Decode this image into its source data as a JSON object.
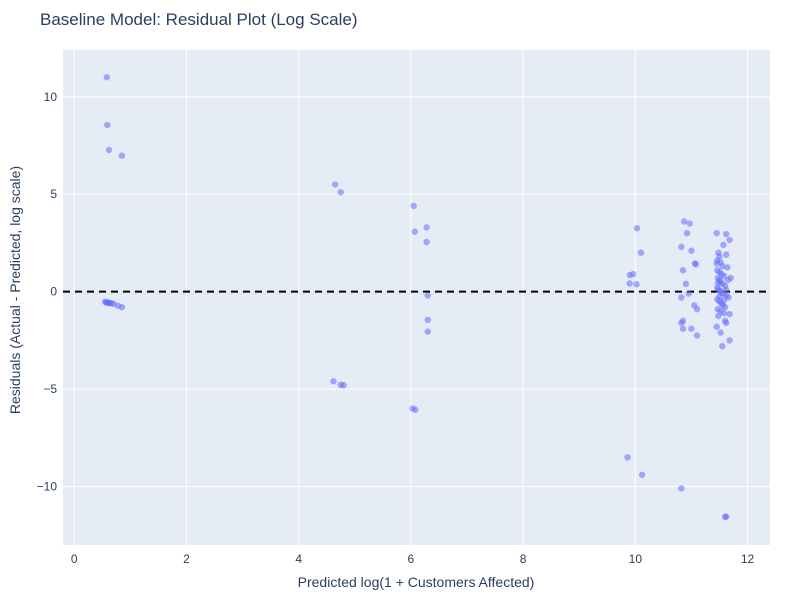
{
  "chart_data": {
    "type": "scatter",
    "title": "Baseline Model: Residual Plot (Log Scale)",
    "xlabel": "Predicted log(1 + Customers Affected)",
    "ylabel": "Residuals (Actual - Predicted, log scale)",
    "xlim": [
      -0.2,
      12.4
    ],
    "ylim": [
      -13,
      12.4
    ],
    "x_ticks": [
      0,
      2,
      4,
      6,
      8,
      10,
      12
    ],
    "y_ticks": [
      -10,
      -5,
      0,
      5,
      10
    ],
    "grid": true,
    "legend": "none",
    "reference_line": {
      "y": 0,
      "style": "dashed",
      "color": "#000000"
    },
    "colors": {
      "point": "#636efa",
      "plot_bg": "#e5ecf6",
      "grid": "#ffffff",
      "text": "#2a3f5f"
    },
    "series": [
      {
        "points": [
          [
            0.58,
            11.0
          ],
          [
            0.59,
            8.55
          ],
          [
            0.62,
            7.27
          ],
          [
            0.85,
            6.98
          ],
          [
            0.55,
            -0.52
          ],
          [
            0.57,
            -0.55
          ],
          [
            0.59,
            -0.56
          ],
          [
            0.61,
            -0.57
          ],
          [
            0.63,
            -0.58
          ],
          [
            0.66,
            -0.6
          ],
          [
            0.7,
            -0.62
          ],
          [
            0.78,
            -0.72
          ],
          [
            0.85,
            -0.8
          ],
          [
            4.65,
            5.5
          ],
          [
            4.75,
            5.1
          ],
          [
            4.62,
            -4.6
          ],
          [
            4.75,
            -4.78
          ],
          [
            4.8,
            -4.8
          ],
          [
            6.05,
            4.4
          ],
          [
            6.07,
            3.08
          ],
          [
            6.28,
            3.3
          ],
          [
            6.28,
            2.55
          ],
          [
            6.3,
            -0.2
          ],
          [
            6.3,
            -1.45
          ],
          [
            6.3,
            -2.05
          ],
          [
            6.03,
            -6.0
          ],
          [
            6.08,
            -6.06
          ],
          [
            9.9,
            0.85
          ],
          [
            9.96,
            0.9
          ],
          [
            9.9,
            0.42
          ],
          [
            10.02,
            0.38
          ],
          [
            10.03,
            3.25
          ],
          [
            10.1,
            2.0
          ],
          [
            9.86,
            -8.5
          ],
          [
            10.12,
            -9.4
          ],
          [
            10.82,
            2.3
          ],
          [
            10.87,
            3.6
          ],
          [
            10.97,
            3.5
          ],
          [
            10.92,
            3.0
          ],
          [
            10.85,
            1.1
          ],
          [
            10.9,
            0.4
          ],
          [
            11.0,
            2.1
          ],
          [
            11.08,
            1.4
          ],
          [
            11.06,
            1.45
          ],
          [
            10.95,
            -0.1
          ],
          [
            10.82,
            -0.3
          ],
          [
            11.05,
            -0.7
          ],
          [
            11.1,
            -0.9
          ],
          [
            10.85,
            -1.5
          ],
          [
            10.82,
            -1.6
          ],
          [
            10.85,
            -1.9
          ],
          [
            11.0,
            -1.9
          ],
          [
            11.1,
            -2.25
          ],
          [
            10.82,
            -10.1
          ],
          [
            11.45,
            3.0
          ],
          [
            11.62,
            2.95
          ],
          [
            11.68,
            2.65
          ],
          [
            11.57,
            2.4
          ],
          [
            11.48,
            2.0
          ],
          [
            11.5,
            1.8
          ],
          [
            11.52,
            1.5
          ],
          [
            11.62,
            1.9
          ],
          [
            11.46,
            1.6
          ],
          [
            11.55,
            1.3
          ],
          [
            11.64,
            1.25
          ],
          [
            11.46,
            1.1
          ],
          [
            11.5,
            1.0
          ],
          [
            11.54,
            0.9
          ],
          [
            11.58,
            0.8
          ],
          [
            11.47,
            0.7
          ],
          [
            11.5,
            0.6
          ],
          [
            11.52,
            0.5
          ],
          [
            11.55,
            0.4
          ],
          [
            11.6,
            0.3
          ],
          [
            11.46,
            0.2
          ],
          [
            11.48,
            0.1
          ],
          [
            11.51,
            0.05
          ],
          [
            11.53,
            -0.05
          ],
          [
            11.57,
            -0.1
          ],
          [
            11.62,
            -0.2
          ],
          [
            11.66,
            -0.3
          ],
          [
            11.46,
            -0.4
          ],
          [
            11.5,
            -0.5
          ],
          [
            11.53,
            -0.6
          ],
          [
            11.56,
            -0.7
          ],
          [
            11.6,
            -0.8
          ],
          [
            11.47,
            -0.9
          ],
          [
            11.52,
            -1.0
          ],
          [
            11.58,
            -1.1
          ],
          [
            11.68,
            -1.15
          ],
          [
            11.48,
            -1.25
          ],
          [
            11.6,
            -1.5
          ],
          [
            11.62,
            -1.6
          ],
          [
            11.45,
            -1.8
          ],
          [
            11.52,
            -2.1
          ],
          [
            11.68,
            -2.5
          ],
          [
            11.55,
            -2.8
          ],
          [
            11.7,
            0.7
          ],
          [
            11.65,
            0.6
          ],
          [
            11.45,
            1.45
          ],
          [
            11.62,
            0.1
          ],
          [
            11.58,
            -0.45
          ],
          [
            11.5,
            -0.25
          ],
          [
            11.47,
            0.45
          ],
          [
            11.6,
            -11.55
          ],
          [
            11.62,
            -11.55
          ]
        ]
      }
    ]
  }
}
